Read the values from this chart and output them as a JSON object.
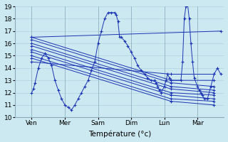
{
  "xlabel": "Température (°c)",
  "ylim": [
    10,
    19
  ],
  "yticks": [
    10,
    11,
    12,
    13,
    14,
    15,
    16,
    17,
    18,
    19
  ],
  "xtick_labels": [
    "Ven",
    "Mer",
    "Sam",
    "Dim",
    "Lun",
    "Mar"
  ],
  "xtick_positions": [
    1,
    2,
    3,
    4,
    5,
    6
  ],
  "background_color": "#cce8f0",
  "grid_color": "#aaccdd",
  "line_color": "#1c34b4",
  "xlim": [
    0.5,
    6.8
  ],
  "main_line": {
    "x": [
      1.0,
      1.05,
      1.1,
      1.2,
      1.3,
      1.4,
      1.5,
      1.6,
      1.7,
      1.8,
      1.9,
      2.0,
      2.1,
      2.2,
      2.3,
      2.4,
      2.5,
      2.6,
      2.7,
      2.8,
      2.9,
      3.0,
      3.1,
      3.2,
      3.3,
      3.4,
      3.5,
      3.55,
      3.6,
      3.65,
      3.7,
      3.8,
      3.9,
      4.0,
      4.1,
      4.2,
      4.3,
      4.4,
      4.5,
      4.6,
      4.7,
      4.75,
      4.8,
      4.85,
      4.9,
      5.0,
      5.05,
      5.1,
      5.15,
      5.2,
      5.5,
      5.55,
      5.6,
      5.65,
      5.7,
      5.75,
      5.8,
      5.85,
      5.9,
      6.0,
      6.05,
      6.1,
      6.15,
      6.2,
      6.3,
      6.4,
      6.5,
      6.6,
      6.7
    ],
    "y": [
      12.0,
      12.3,
      12.8,
      14.0,
      14.8,
      15.2,
      14.8,
      14.2,
      13.0,
      12.2,
      11.5,
      11.0,
      10.8,
      10.6,
      11.0,
      11.5,
      12.0,
      12.5,
      13.0,
      13.8,
      14.5,
      16.0,
      17.0,
      18.0,
      18.5,
      18.5,
      18.5,
      18.3,
      17.8,
      16.5,
      16.5,
      16.2,
      15.8,
      15.3,
      14.8,
      14.2,
      13.8,
      13.5,
      13.2,
      13.0,
      13.0,
      12.8,
      12.5,
      12.2,
      12.0,
      12.5,
      13.0,
      13.5,
      13.2,
      13.0,
      13.0,
      14.5,
      18.0,
      19.0,
      19.2,
      18.0,
      16.0,
      14.5,
      13.2,
      12.5,
      12.2,
      12.0,
      11.8,
      11.5,
      11.5,
      12.5,
      13.5,
      14.0,
      13.5
    ]
  },
  "fan_lines": [
    {
      "x": [
        1.0,
        6.7
      ],
      "y": [
        16.5,
        17.0
      ]
    },
    {
      "x": [
        1.0,
        5.2,
        6.5
      ],
      "y": [
        16.5,
        13.0,
        13.0
      ]
    },
    {
      "x": [
        1.0,
        5.2,
        6.5
      ],
      "y": [
        16.3,
        12.8,
        12.5
      ]
    },
    {
      "x": [
        1.0,
        5.2,
        6.5
      ],
      "y": [
        16.0,
        12.5,
        12.2
      ]
    },
    {
      "x": [
        1.0,
        5.2,
        6.5
      ],
      "y": [
        15.8,
        12.3,
        12.0
      ]
    },
    {
      "x": [
        1.0,
        5.2,
        6.5
      ],
      "y": [
        15.5,
        12.0,
        11.8
      ]
    },
    {
      "x": [
        1.0,
        5.2,
        6.5
      ],
      "y": [
        15.3,
        11.8,
        11.5
      ]
    },
    {
      "x": [
        1.0,
        5.2,
        6.5
      ],
      "y": [
        15.0,
        11.5,
        11.3
      ]
    },
    {
      "x": [
        1.0,
        5.2,
        6.5
      ],
      "y": [
        14.8,
        11.3,
        11.0
      ]
    },
    {
      "x": [
        1.0,
        5.2,
        6.5
      ],
      "y": [
        14.5,
        13.5,
        13.5
      ]
    }
  ],
  "marker": "+"
}
